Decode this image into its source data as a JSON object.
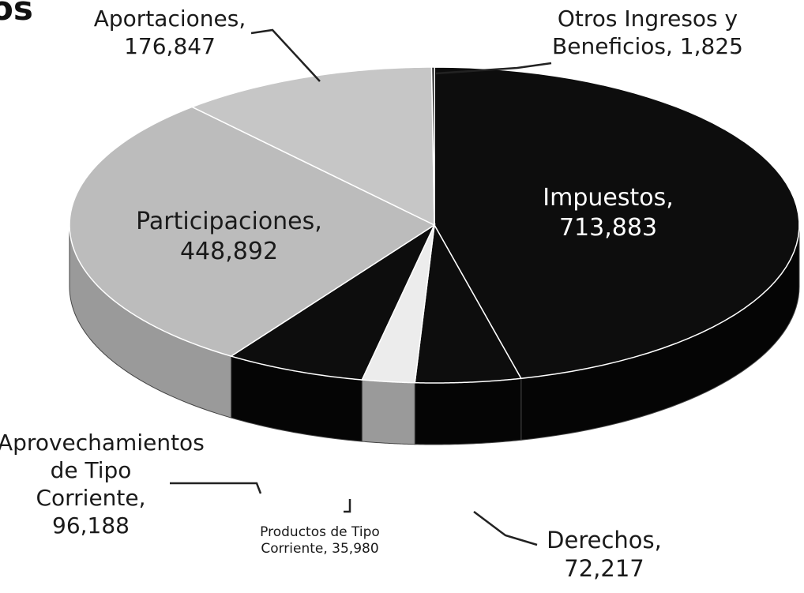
{
  "chart_data": {
    "type": "pie3d",
    "title": "os",
    "categories": [
      "Impuestos",
      "Derechos",
      "Productos de Tipo Corriente",
      "Aprovechamientos de Tipo Corriente",
      "Participaciones",
      "Aportaciones",
      "Otros Ingresos y Beneficios"
    ],
    "labels": [
      "Impuestos, 713,883",
      "Derechos, 72,217",
      "Productos de Tipo Corriente, 35,980",
      "Aprovechamientos de Tipo Corriente, 96,188",
      "Participaciones, 448,892",
      "Aportaciones, 176,847",
      "Otros Ingresos y Beneficios, 1,825"
    ],
    "values": [
      713883,
      72217,
      35980,
      96188,
      448892,
      176847,
      1825
    ],
    "colors": [
      "#0d0d0d",
      "#0d0d0d",
      "#ececec",
      "#0d0d0d",
      "#bcbcbc",
      "#c6c6c6",
      "#0d0d0d"
    ]
  }
}
